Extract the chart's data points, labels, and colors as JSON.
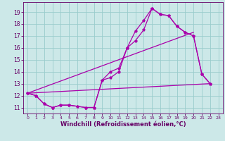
{
  "bg_color": "#cce8e8",
  "grid_color": "#99cccc",
  "line_color": "#aa00aa",
  "marker": "*",
  "xlabel": "Windchill (Refroidissement éolien,°C)",
  "xlabel_fontsize": 6.0,
  "ylabel_ticks": [
    11,
    12,
    13,
    14,
    15,
    16,
    17,
    18,
    19
  ],
  "xlim": [
    -0.5,
    23.5
  ],
  "ylim": [
    10.5,
    19.8
  ],
  "xticks": [
    0,
    1,
    2,
    3,
    4,
    5,
    6,
    7,
    8,
    9,
    10,
    11,
    12,
    13,
    14,
    15,
    16,
    17,
    18,
    19,
    20,
    21,
    22,
    23
  ],
  "line1_x": [
    0,
    1,
    2,
    3,
    4,
    5,
    6,
    7,
    8,
    9,
    10,
    11,
    12,
    13,
    14,
    15,
    16,
    17,
    18,
    19,
    20,
    21,
    22
  ],
  "line1_y": [
    12.2,
    12.0,
    11.3,
    11.0,
    11.2,
    11.2,
    11.1,
    11.0,
    11.0,
    13.3,
    13.5,
    14.0,
    16.0,
    16.6,
    17.5,
    19.3,
    18.8,
    18.7,
    17.8,
    17.3,
    17.0,
    13.8,
    13.0
  ],
  "line2_x": [
    0,
    1,
    2,
    3,
    4,
    5,
    6,
    7,
    8,
    9,
    10,
    11,
    12,
    13,
    14,
    15,
    16,
    17,
    18,
    19,
    20,
    21,
    22
  ],
  "line2_y": [
    12.2,
    12.0,
    11.3,
    11.0,
    11.2,
    11.2,
    11.1,
    11.0,
    11.0,
    13.3,
    14.0,
    14.3,
    16.0,
    17.4,
    18.3,
    19.3,
    18.8,
    18.7,
    17.8,
    17.3,
    17.0,
    13.8,
    13.0
  ],
  "line3_x": [
    0,
    22
  ],
  "line3_y": [
    12.2,
    13.0
  ],
  "line4_x": [
    0,
    20
  ],
  "line4_y": [
    12.2,
    17.3
  ],
  "tick_color": "#660066",
  "spine_color": "#660066"
}
